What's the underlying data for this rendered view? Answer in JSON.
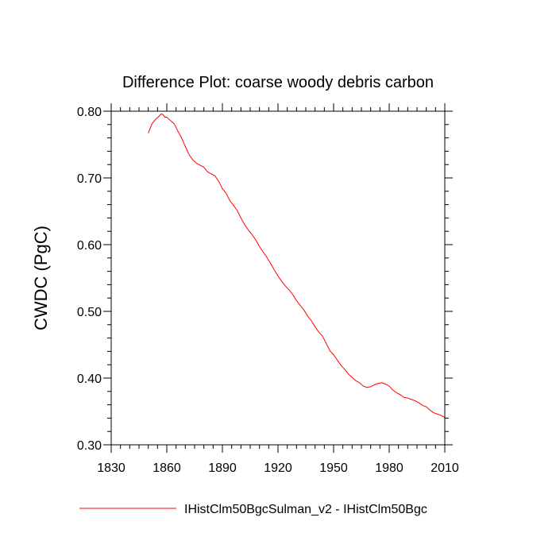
{
  "chart_data": {
    "type": "line",
    "title": "Difference Plot: coarse woody debris carbon",
    "xlabel": "",
    "ylabel": "CWDC  (PgC)",
    "xlim": [
      1830,
      2010
    ],
    "ylim": [
      0.3,
      0.8
    ],
    "x_ticks": [
      1830,
      1860,
      1890,
      1920,
      1950,
      1980,
      2010
    ],
    "x_tick_labels": [
      "1830",
      "1860",
      "1890",
      "1920",
      "1950",
      "1980",
      "2010"
    ],
    "y_ticks": [
      0.3,
      0.4,
      0.5,
      0.6,
      0.7,
      0.8
    ],
    "y_tick_labels": [
      "0.30",
      "0.40",
      "0.50",
      "0.60",
      "0.70",
      "0.80"
    ],
    "grid": false,
    "legend_position": "bottom",
    "series": [
      {
        "name": "IHistClm50BgcSulman_v2 - IHistClm50Bgc",
        "color": "#ff0000",
        "x": [
          1850,
          1852,
          1854,
          1856,
          1857,
          1858,
          1859,
          1860,
          1862,
          1864,
          1866,
          1868,
          1870,
          1872,
          1874,
          1876,
          1878,
          1880,
          1882,
          1884,
          1886,
          1888,
          1890,
          1892,
          1894,
          1896,
          1898,
          1900,
          1902,
          1904,
          1906,
          1908,
          1910,
          1912,
          1914,
          1916,
          1918,
          1920,
          1922,
          1924,
          1926,
          1928,
          1930,
          1932,
          1934,
          1936,
          1938,
          1940,
          1942,
          1944,
          1946,
          1948,
          1950,
          1952,
          1954,
          1956,
          1958,
          1960,
          1962,
          1964,
          1966,
          1968,
          1970,
          1972,
          1974,
          1976,
          1978,
          1980,
          1982,
          1984,
          1986,
          1988,
          1990,
          1992,
          1994,
          1996,
          1998,
          2000,
          2002,
          2004,
          2006,
          2008,
          2010
        ],
        "values": [
          0.767,
          0.781,
          0.788,
          0.793,
          0.796,
          0.795,
          0.791,
          0.791,
          0.786,
          0.781,
          0.77,
          0.76,
          0.747,
          0.735,
          0.727,
          0.722,
          0.719,
          0.716,
          0.709,
          0.706,
          0.703,
          0.695,
          0.684,
          0.677,
          0.666,
          0.659,
          0.651,
          0.64,
          0.63,
          0.622,
          0.615,
          0.607,
          0.597,
          0.589,
          0.581,
          0.572,
          0.562,
          0.553,
          0.545,
          0.538,
          0.532,
          0.525,
          0.516,
          0.509,
          0.502,
          0.493,
          0.486,
          0.477,
          0.469,
          0.463,
          0.452,
          0.441,
          0.435,
          0.427,
          0.419,
          0.413,
          0.406,
          0.401,
          0.396,
          0.393,
          0.388,
          0.386,
          0.387,
          0.39,
          0.392,
          0.393,
          0.391,
          0.388,
          0.382,
          0.378,
          0.375,
          0.371,
          0.37,
          0.368,
          0.366,
          0.363,
          0.359,
          0.357,
          0.352,
          0.348,
          0.346,
          0.344,
          0.341
        ]
      }
    ]
  }
}
